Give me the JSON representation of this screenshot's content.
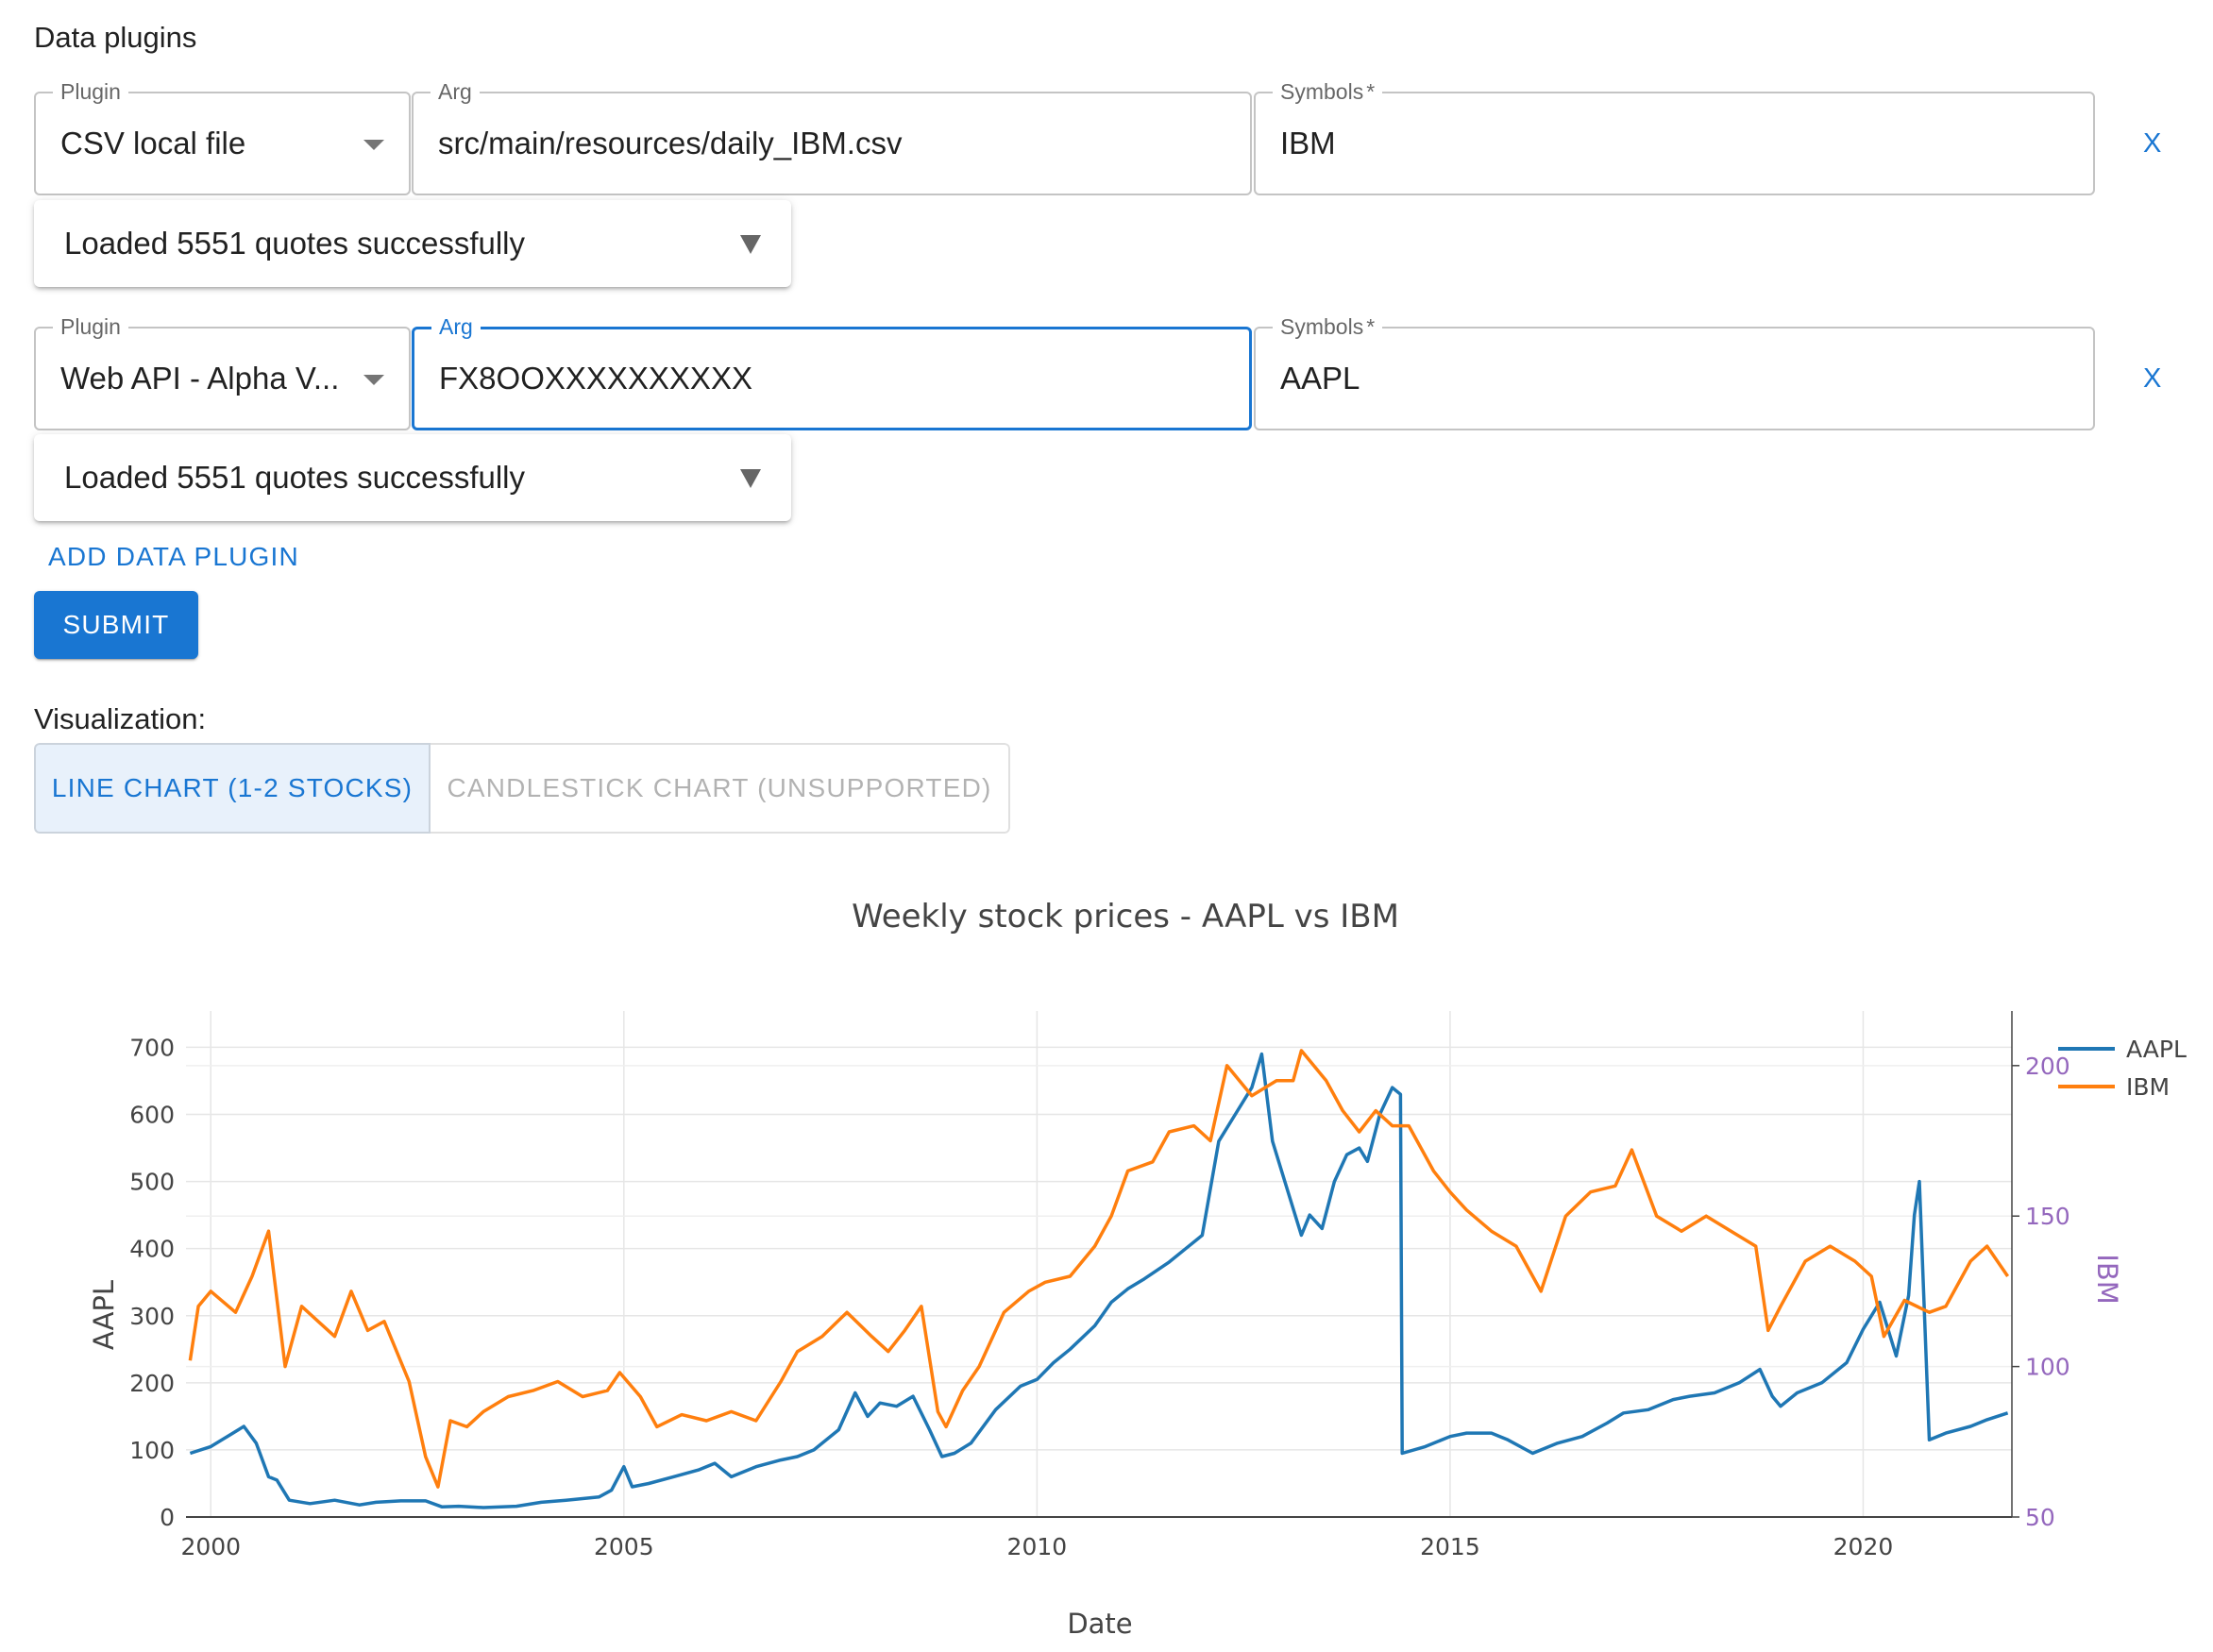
{
  "header": {
    "title": "Data plugins"
  },
  "plugins": [
    {
      "plugin_label": "Plugin",
      "plugin_value": "CSV local file",
      "arg_label": "Arg",
      "arg_value": "src/main/resources/daily_IBM.csv",
      "symbols_label": "Symbols",
      "required_mark": "*",
      "symbols_value": "IBM",
      "remove_label": "X",
      "status": "Loaded 5551 quotes successfully"
    },
    {
      "plugin_label": "Plugin",
      "plugin_value": "Web API - Alpha V...",
      "arg_label": "Arg",
      "arg_value": "FX8OOXXXXXXXXXX",
      "symbols_label": "Symbols",
      "required_mark": "*",
      "symbols_value": "AAPL",
      "remove_label": "X",
      "status": "Loaded 5551 quotes successfully"
    }
  ],
  "add_plugin_label": "ADD DATA PLUGIN",
  "submit_label": "SUBMIT",
  "visualization": {
    "label": "Visualization:",
    "options": [
      "LINE CHART (1-2 STOCKS)",
      "CANDLESTICK CHART (UNSUPPORTED)"
    ],
    "selected": "LINE CHART (1-2 STOCKS)"
  },
  "colors": {
    "accent": "#1976d2",
    "aapl": "#1f77b4",
    "ibm": "#ff7f0e",
    "ibm_axis": "#9467bd"
  },
  "chart_data": {
    "type": "line",
    "title": "Weekly stock prices - AAPL vs IBM",
    "xlabel": "Date",
    "ylabel": "AAPL",
    "y2label": "IBM",
    "xlim": [
      1999.7,
      2021.8
    ],
    "ylim": [
      0,
      740
    ],
    "y2lim": [
      50,
      215
    ],
    "x_ticks": [
      "2000",
      "2005",
      "2010",
      "2015",
      "2020"
    ],
    "x_tick_values": [
      2000,
      2005,
      2010,
      2015,
      2020
    ],
    "y_ticks": [
      "0",
      "100",
      "200",
      "300",
      "400",
      "500",
      "600",
      "700"
    ],
    "y_tick_values": [
      0,
      100,
      200,
      300,
      400,
      500,
      600,
      700
    ],
    "y2_ticks": [
      "50",
      "100",
      "150",
      "200"
    ],
    "y2_tick_values": [
      50,
      100,
      150,
      200
    ],
    "legend_position": "top-right",
    "grid": true,
    "series": [
      {
        "name": "AAPL",
        "axis": "y",
        "x": [
          1999.75,
          2000.0,
          2000.2,
          2000.4,
          2000.55,
          2000.7,
          2000.8,
          2000.95,
          2001.2,
          2001.5,
          2001.8,
          2002.0,
          2002.3,
          2002.6,
          2002.8,
          2003.0,
          2003.3,
          2003.7,
          2004.0,
          2004.3,
          2004.7,
          2004.85,
          2005.0,
          2005.1,
          2005.3,
          2005.6,
          2005.9,
          2006.1,
          2006.3,
          2006.6,
          2006.9,
          2007.1,
          2007.3,
          2007.6,
          2007.8,
          2007.95,
          2008.1,
          2008.3,
          2008.5,
          2008.7,
          2008.85,
          2009.0,
          2009.2,
          2009.5,
          2009.8,
          2010.0,
          2010.2,
          2010.4,
          2010.7,
          2010.9,
          2011.1,
          2011.3,
          2011.6,
          2011.8,
          2012.0,
          2012.2,
          2012.4,
          2012.6,
          2012.72,
          2012.85,
          2013.0,
          2013.2,
          2013.3,
          2013.45,
          2013.6,
          2013.75,
          2013.9,
          2014.0,
          2014.15,
          2014.3,
          2014.4,
          2014.42,
          2014.7,
          2015.0,
          2015.2,
          2015.5,
          2015.7,
          2016.0,
          2016.3,
          2016.6,
          2016.9,
          2017.1,
          2017.4,
          2017.7,
          2017.9,
          2018.2,
          2018.5,
          2018.75,
          2018.9,
          2019.0,
          2019.2,
          2019.5,
          2019.8,
          2020.0,
          2020.2,
          2020.4,
          2020.55,
          2020.62,
          2020.68,
          2020.8,
          2021.0,
          2021.3,
          2021.5,
          2021.75
        ],
        "values": [
          95,
          105,
          120,
          135,
          110,
          60,
          55,
          25,
          20,
          25,
          18,
          22,
          24,
          24,
          15,
          16,
          14,
          16,
          22,
          25,
          30,
          40,
          75,
          45,
          50,
          60,
          70,
          80,
          60,
          75,
          85,
          90,
          100,
          130,
          185,
          150,
          170,
          165,
          180,
          130,
          90,
          95,
          110,
          160,
          195,
          205,
          230,
          250,
          285,
          320,
          340,
          355,
          380,
          400,
          420,
          560,
          600,
          640,
          690,
          560,
          500,
          420,
          450,
          430,
          500,
          540,
          550,
          530,
          600,
          640,
          630,
          95,
          105,
          120,
          125,
          125,
          115,
          95,
          110,
          120,
          140,
          155,
          160,
          175,
          180,
          185,
          200,
          220,
          180,
          165,
          185,
          200,
          230,
          280,
          320,
          240,
          330,
          450,
          500,
          115,
          125,
          135,
          145,
          155
        ]
      },
      {
        "name": "IBM",
        "axis": "y2",
        "x": [
          1999.75,
          1999.85,
          2000.0,
          2000.3,
          2000.5,
          2000.7,
          2000.9,
          2001.1,
          2001.3,
          2001.5,
          2001.7,
          2001.9,
          2002.1,
          2002.4,
          2002.6,
          2002.75,
          2002.9,
          2003.1,
          2003.3,
          2003.6,
          2003.9,
          2004.2,
          2004.5,
          2004.8,
          2004.95,
          2005.2,
          2005.4,
          2005.7,
          2006.0,
          2006.3,
          2006.6,
          2006.9,
          2007.1,
          2007.4,
          2007.7,
          2008.0,
          2008.2,
          2008.4,
          2008.6,
          2008.8,
          2008.9,
          2009.1,
          2009.3,
          2009.6,
          2009.9,
          2010.1,
          2010.4,
          2010.7,
          2010.9,
          2011.1,
          2011.4,
          2011.6,
          2011.9,
          2012.1,
          2012.3,
          2012.6,
          2012.9,
          2013.1,
          2013.2,
          2013.5,
          2013.7,
          2013.9,
          2014.1,
          2014.3,
          2014.5,
          2014.8,
          2015.0,
          2015.2,
          2015.5,
          2015.8,
          2016.1,
          2016.4,
          2016.7,
          2017.0,
          2017.2,
          2017.5,
          2017.8,
          2018.1,
          2018.4,
          2018.7,
          2018.85,
          2019.0,
          2019.3,
          2019.6,
          2019.9,
          2020.1,
          2020.25,
          2020.5,
          2020.8,
          2021.0,
          2021.3,
          2021.5,
          2021.75
        ],
        "values": [
          102,
          120,
          125,
          118,
          130,
          145,
          100,
          120,
          115,
          110,
          125,
          112,
          115,
          95,
          70,
          60,
          82,
          80,
          85,
          90,
          92,
          95,
          90,
          92,
          98,
          90,
          80,
          84,
          82,
          85,
          82,
          95,
          105,
          110,
          118,
          110,
          105,
          112,
          120,
          85,
          80,
          92,
          100,
          118,
          125,
          128,
          130,
          140,
          150,
          165,
          168,
          178,
          180,
          175,
          200,
          190,
          195,
          195,
          205,
          195,
          185,
          178,
          185,
          180,
          180,
          165,
          158,
          152,
          145,
          140,
          125,
          150,
          158,
          160,
          172,
          150,
          145,
          150,
          145,
          140,
          112,
          120,
          135,
          140,
          135,
          130,
          110,
          122,
          118,
          120,
          135,
          140,
          130
        ]
      }
    ]
  }
}
